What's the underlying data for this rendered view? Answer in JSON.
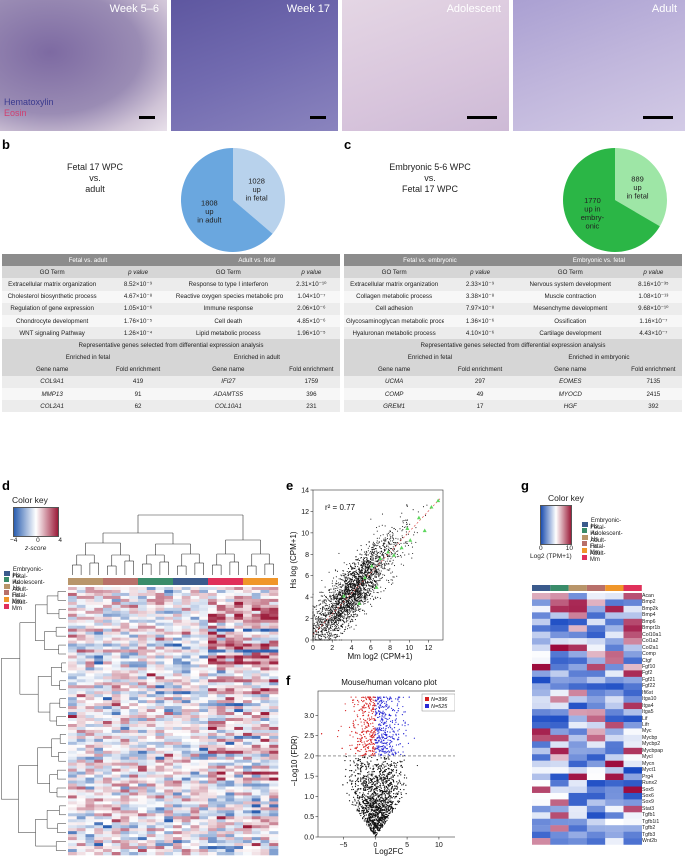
{
  "panel_labels": {
    "a": "a",
    "b": "b",
    "c": "c",
    "d": "d",
    "e": "e",
    "f": "f",
    "g": "g"
  },
  "panel_a": {
    "images": [
      {
        "title": "Week 5–6",
        "color": "#8d7aa8"
      },
      {
        "title": "Week 17",
        "color": "#6f68a9"
      },
      {
        "title": "Adolescent",
        "color": "#d9c7dd"
      },
      {
        "title": "Adult",
        "color": "#b8acd6"
      }
    ],
    "stain_hematoxylin": "Hematoxylin",
    "stain_eosin": "Eosin"
  },
  "panel_b": {
    "comparison": [
      "Fetal 17 WPC",
      "vs.",
      "adult"
    ],
    "pie": [
      {
        "label": "1028\nup\nin fetal",
        "value": 1028,
        "color": "#b8d2ec"
      },
      {
        "label": "1808\nup\nin adult",
        "value": 1808,
        "color": "#6aa7df"
      }
    ],
    "table": {
      "header_left": "Fetal vs. adult",
      "header_right": "Adult vs. fetal",
      "col_go": "GO Term",
      "col_p": "p value",
      "rows": [
        [
          "Extracellular matrix organization",
          "8.52×10⁻⁹",
          "Response to type I interferon",
          "2.31×10⁻¹⁰"
        ],
        [
          "Cholesterol biosynthetic process",
          "4.67×10⁻⁸",
          "Reactive oxygen species metabolic process",
          "1.04×10⁻⁷"
        ],
        [
          "Regulation of gene expression",
          "1.05×10⁻⁶",
          "Immune response",
          "2.06×10⁻⁶"
        ],
        [
          "Chondrocyte development",
          "1.76×10⁻⁵",
          "Cell death",
          "4.85×10⁻⁶"
        ],
        [
          "WNT signaling Pathway",
          "1.26×10⁻⁴",
          "Lipid metabolic process",
          "1.96×10⁻⁵"
        ]
      ],
      "rep_title": "Representative genes selected from differential expression analysis",
      "enriched_left": "Enriched in fetal",
      "enriched_right": "Enriched in adult",
      "col_gene": "Gene name",
      "col_fold": "Fold enrichment",
      "genes": [
        [
          "COL9A1",
          "419",
          "IFI27",
          "1759"
        ],
        [
          "MMP13",
          "91",
          "ADAMTS5",
          "396"
        ],
        [
          "COL2A1",
          "62",
          "COL10A1",
          "231"
        ]
      ]
    }
  },
  "panel_c": {
    "comparison": [
      "Embryonic 5-6 WPC",
      "vs.",
      "Fetal 17 WPC"
    ],
    "pie": [
      {
        "label": "889\nup\nin fetal",
        "value": 889,
        "color": "#9ee6a6"
      },
      {
        "label": "1770\nup in\nembry-\nonic",
        "value": 1770,
        "color": "#2bb646"
      }
    ],
    "table": {
      "header_left": "Fetal vs. embryonic",
      "header_right": "Embryonic vs. fetal",
      "col_go": "GO Term",
      "col_p": "p value",
      "rows": [
        [
          "Extracellular matrix organization",
          "2.33×10⁻⁹",
          "Nervous system development",
          "8.16×10⁻³⁵"
        ],
        [
          "Collagen metabolic process",
          "3.38×10⁻⁸",
          "Muscle contraction",
          "1.08×10⁻¹³"
        ],
        [
          "Cell adhesion",
          "7.97×10⁻⁸",
          "Mesenchyme development",
          "9.68×10⁻¹⁰"
        ],
        [
          "Glycosaminoglycan metabolic process",
          "1.36×10⁻⁶",
          "Ossification",
          "1.16×10⁻⁷"
        ],
        [
          "Hyaluronan metabolic process",
          "4.10×10⁻⁶",
          "Cartilage development",
          "4.43×10⁻⁷"
        ]
      ],
      "rep_title": "Representative genes selected from differential expression analysis",
      "enriched_left": "Enriched in fetal",
      "enriched_right": "Enriched in embryonic",
      "col_gene": "Gene name",
      "col_fold": "Fold enrichment",
      "genes": [
        [
          "UCMA",
          "297",
          "EOMES",
          "7135"
        ],
        [
          "COMP",
          "49",
          "MYOCD",
          "2415"
        ],
        [
          "GREM1",
          "17",
          "HGF",
          "392"
        ]
      ]
    }
  },
  "panel_d": {
    "color_key": "Color key",
    "ticks": [
      "−4",
      "0",
      "4"
    ],
    "axis_label": "z-score",
    "groups": [
      {
        "name": "Embryonic-Hs",
        "color": "#3a5a8c"
      },
      {
        "name": "Fetal-Hs",
        "color": "#3a8c6a"
      },
      {
        "name": "Adolescent-Hs",
        "color": "#b8956a"
      },
      {
        "name": "Adult-Hs",
        "color": "#b8706a"
      },
      {
        "name": "Fetal-Mm",
        "color": "#f0962a"
      },
      {
        "name": "Adult-Mm",
        "color": "#e0305a"
      }
    ]
  },
  "panel_e": {
    "chart_data": {
      "type": "scatter",
      "title": "",
      "annotation": "r² = 0.77",
      "xlabel": "Mm log2 (CPM+1)",
      "ylabel": "Hs log (CPM+1)",
      "xlim": [
        0,
        13.5
      ],
      "ylim": [
        0,
        14
      ],
      "xticks": [
        "0",
        "2",
        "4",
        "6",
        "8",
        "10",
        "12"
      ],
      "yticks": [
        "0",
        "2",
        "4",
        "6",
        "8",
        "10",
        "12",
        "14"
      ],
      "highlight": [
        [
          3.2,
          4.1
        ],
        [
          5.4,
          5.8
        ],
        [
          6.1,
          6.9
        ],
        [
          7.0,
          7.6
        ],
        [
          7.8,
          8.2
        ],
        [
          8.4,
          7.9
        ],
        [
          9.2,
          8.6
        ],
        [
          10.1,
          9.3
        ],
        [
          11.0,
          11.4
        ],
        [
          11.6,
          10.2
        ],
        [
          12.3,
          12.4
        ],
        [
          13.0,
          13.0
        ],
        [
          6.6,
          4.9
        ],
        [
          4.8,
          3.4
        ],
        [
          9.8,
          10.4
        ]
      ]
    }
  },
  "panel_f": {
    "chart_data": {
      "type": "scatter",
      "title": "Mouse/human volcano plot",
      "xlabel": "Log2FC",
      "ylabel": "−Log10 (FDR)",
      "xlim": [
        -9,
        13
      ],
      "ylim": [
        0,
        3.6
      ],
      "xticks": [
        "−5",
        "0",
        "5",
        "10"
      ],
      "yticks": [
        "0.0",
        "0.5",
        "1.0",
        "1.5",
        "2.0",
        "2.5",
        "3.0"
      ],
      "threshold": 2.0,
      "legend": [
        {
          "label": "N=396",
          "color": "#d62020"
        },
        {
          "label": "N=525",
          "color": "#2a2ad6"
        }
      ]
    }
  },
  "panel_g": {
    "color_key": "Color key",
    "ticks": [
      "0",
      "10"
    ],
    "axis_label": "Log2 (TPM+1)",
    "groups": [
      {
        "name": "Embryonic-Hs",
        "color": "#3a5a8c"
      },
      {
        "name": "Fetal-Hs",
        "color": "#3a8c6a"
      },
      {
        "name": "Adolescent-Hs",
        "color": "#b8956a"
      },
      {
        "name": "Adult-Hs",
        "color": "#b8706a"
      },
      {
        "name": "Fetal-Mm",
        "color": "#f0962a"
      },
      {
        "name": "Adult-Mm",
        "color": "#e0305a"
      }
    ],
    "genes": [
      "Acan",
      "Bmp2",
      "Bmp2k",
      "Bmp4",
      "Bmp6",
      "Bmpr1b",
      "Col10a1",
      "Col1a2",
      "Col2a1",
      "Comp",
      "Ctgf",
      "Fgf10",
      "Fgf2",
      "Fgf21",
      "Fgf22",
      "Ifi6st",
      "Itga10",
      "Itga4",
      "Itga5",
      "Lif",
      "Lifr",
      "Myc",
      "Mycbp",
      "Mycbp2",
      "Mycbpap",
      "Mycl",
      "Mycn",
      "Myct1",
      "Prg4",
      "Runx2",
      "Sox5",
      "Sox6",
      "Sox9",
      "Stat3",
      "Tgfb1",
      "Tgfb1i1",
      "Tgfb2",
      "Tgfb3",
      "Wnt2b"
    ]
  }
}
